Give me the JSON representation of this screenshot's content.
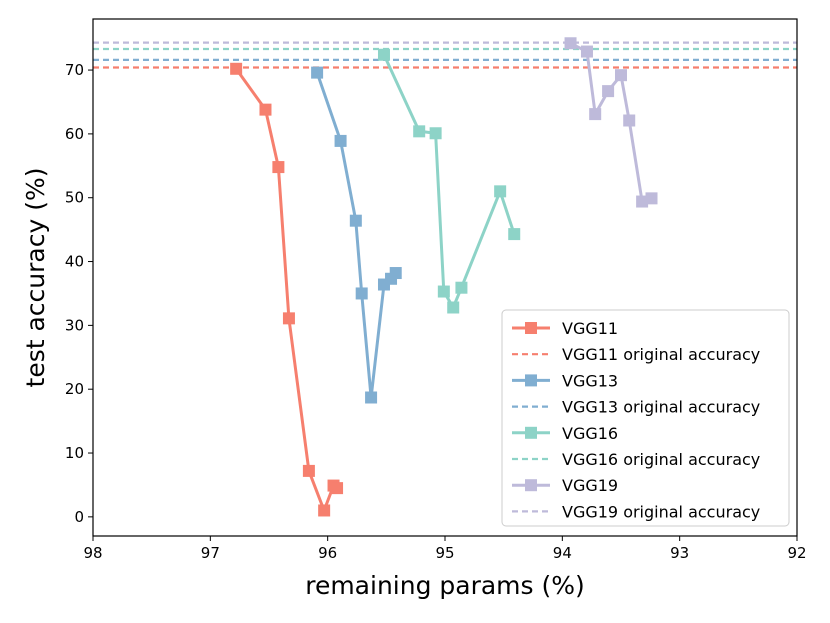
{
  "chart_data": {
    "type": "line",
    "title": "",
    "xlabel": "remaining params (%)",
    "ylabel": "test accuracy (%)",
    "xlim": [
      98,
      92
    ],
    "ylim": [
      -3,
      78
    ],
    "xticks": [
      98,
      97,
      96,
      95,
      94,
      93,
      92
    ],
    "xtick_labels": [
      "98",
      "97",
      "96",
      "95",
      "94",
      "93",
      "92"
    ],
    "yticks": [
      0,
      10,
      20,
      30,
      40,
      50,
      60,
      70
    ],
    "ytick_labels": [
      "0",
      "10",
      "20",
      "30",
      "40",
      "50",
      "60",
      "70"
    ],
    "grid": false,
    "legend_position": "bottom-right",
    "series": [
      {
        "name": "VGG11",
        "color": "#f67f6e",
        "x": [
          96.78,
          96.53,
          96.42,
          96.33,
          96.16,
          96.03,
          95.95,
          95.92
        ],
        "y": [
          70.2,
          63.8,
          54.8,
          31.1,
          7.2,
          1.0,
          4.9,
          4.5
        ]
      },
      {
        "name": "VGG13",
        "color": "#80aed1",
        "x": [
          96.09,
          95.89,
          95.76,
          95.71,
          95.63,
          95.52,
          95.46,
          95.42
        ],
        "y": [
          69.6,
          58.9,
          46.4,
          35.0,
          18.7,
          36.4,
          37.3,
          38.2
        ]
      },
      {
        "name": "VGG16",
        "color": "#8dd3c7",
        "x": [
          95.52,
          95.22,
          95.08,
          95.01,
          94.93,
          94.86,
          94.53,
          94.41
        ],
        "y": [
          72.4,
          60.4,
          60.1,
          35.3,
          32.8,
          35.9,
          51.0,
          44.3
        ]
      },
      {
        "name": "VGG19",
        "color": "#bebada",
        "x": [
          93.93,
          93.79,
          93.72,
          93.61,
          93.5,
          93.43,
          93.32,
          93.24
        ],
        "y": [
          74.2,
          72.9,
          63.1,
          66.7,
          69.2,
          62.1,
          49.4,
          49.9
        ]
      }
    ],
    "reference_lines": [
      {
        "name": "VGG11 original accuracy",
        "color": "#f67f6e",
        "y": 70.4
      },
      {
        "name": "VGG13 original accuracy",
        "color": "#80aed1",
        "y": 71.6
      },
      {
        "name": "VGG16 original accuracy",
        "color": "#8dd3c7",
        "y": 73.3
      },
      {
        "name": "VGG19 original accuracy",
        "color": "#bebada",
        "y": 74.3
      }
    ]
  }
}
